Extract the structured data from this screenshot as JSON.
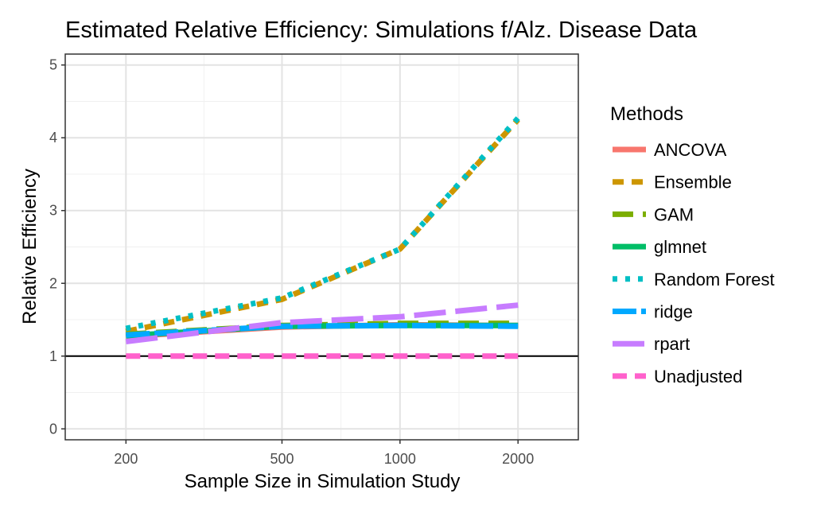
{
  "chart_data": {
    "type": "line",
    "title": "Estimated Relative Efficiency: Simulations f/Alz. Disease Data",
    "xlabel": "Sample Size in Simulation Study",
    "ylabel": "Relative Efficiency",
    "x": [
      200,
      500,
      1000,
      2000
    ],
    "x_scale": "log",
    "xlim": [
      140,
      2850
    ],
    "ylim": [
      -0.15,
      5.15
    ],
    "yticks": [
      0,
      1,
      2,
      3,
      4,
      5
    ],
    "xticks": [
      200,
      500,
      1000,
      2000
    ],
    "reference_line": 1,
    "grid": true,
    "legend": {
      "title": "Methods",
      "position": "right"
    },
    "series": [
      {
        "name": "ANCOVA",
        "values": [
          1.27,
          1.4,
          1.43,
          1.42
        ],
        "color": "#F8766D",
        "dash": ""
      },
      {
        "name": "Ensemble",
        "values": [
          1.34,
          1.78,
          2.47,
          4.25
        ],
        "color": "#CD9600",
        "dash": "14 10"
      },
      {
        "name": "GAM",
        "values": [
          1.3,
          1.42,
          1.45,
          1.45
        ],
        "color": "#7CAE00",
        "dash": "26 12"
      },
      {
        "name": "glmnet",
        "values": [
          1.28,
          1.41,
          1.42,
          1.42
        ],
        "color": "#00BE67",
        "dash": ""
      },
      {
        "name": "Random Forest",
        "values": [
          1.38,
          1.8,
          2.47,
          4.27
        ],
        "color": "#00BFC4",
        "dash": "6 10"
      },
      {
        "name": "ridge",
        "values": [
          1.29,
          1.41,
          1.42,
          1.41
        ],
        "color": "#00A9FF",
        "dash": "30 6"
      },
      {
        "name": "rpart",
        "values": [
          1.2,
          1.46,
          1.54,
          1.7
        ],
        "color": "#C77CFF",
        "dash": "40 12"
      },
      {
        "name": "Unadjusted",
        "values": [
          1.0,
          1.0,
          1.0,
          1.0
        ],
        "color": "#FF61CC",
        "dash": "18 10"
      }
    ]
  }
}
